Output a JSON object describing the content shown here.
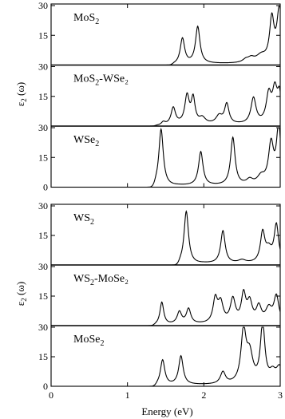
{
  "chart_data": [
    {
      "type": "line",
      "title": "",
      "xlabel": "Energy (eV)",
      "ylabel": "ε₂ (ω)",
      "xlim": [
        0,
        3
      ],
      "x_ticks": [
        "0",
        "1",
        "2",
        "3"
      ],
      "panels": [
        {
          "label_main": "MoS",
          "label_sub": "2",
          "label_rest": "",
          "ylim": [
            0,
            30
          ],
          "y_ticks": [
            "15",
            "30"
          ],
          "peaks": [
            [
              1.72,
              13.0,
              0.035
            ],
            [
              1.92,
              18.5,
              0.035
            ],
            [
              2.55,
              1.5,
              0.05
            ],
            [
              2.62,
              2.0,
              0.05
            ],
            [
              2.75,
              3.5,
              0.08
            ],
            [
              2.89,
              21.0,
              0.035
            ],
            [
              2.99,
              27.0,
              0.04
            ]
          ],
          "onset": 1.62
        },
        {
          "label_main": "MoS",
          "label_sub": "2",
          "label_rest": "-WSe₂",
          "ylim": [
            0,
            30
          ],
          "y_ticks": [
            "15",
            "30"
          ],
          "peaks": [
            [
              1.47,
              1.5,
              0.03
            ],
            [
              1.6,
              8.5,
              0.035
            ],
            [
              1.78,
              14.0,
              0.035
            ],
            [
              1.86,
              12.5,
              0.03
            ],
            [
              1.98,
              3.0,
              0.05
            ],
            [
              2.2,
              4.0,
              0.05
            ],
            [
              2.3,
              10.0,
              0.035
            ],
            [
              2.65,
              13.0,
              0.04
            ],
            [
              2.85,
              14.0,
              0.04
            ],
            [
              2.93,
              16.0,
              0.04
            ],
            [
              2.99,
              13.0,
              0.03
            ]
          ],
          "onset": 1.4
        },
        {
          "label_main": "WSe",
          "label_sub": "2",
          "label_rest": "",
          "ylim": [
            0,
            30
          ],
          "y_ticks": [
            "0",
            "15",
            "30"
          ],
          "peaks": [
            [
              1.44,
              29.0,
              0.035
            ],
            [
              1.96,
              17.0,
              0.035
            ],
            [
              2.38,
              24.0,
              0.035
            ],
            [
              2.6,
              2.5,
              0.05
            ],
            [
              2.75,
              4.0,
              0.06
            ],
            [
              2.88,
              20.0,
              0.04
            ],
            [
              2.98,
              29.0,
              0.035
            ]
          ],
          "onset": 1.38
        }
      ]
    },
    {
      "type": "line",
      "title": "",
      "xlabel": "Energy (eV)",
      "ylabel": "ε₂ (ω)",
      "xlim": [
        0,
        3
      ],
      "x_ticks": [
        "0",
        "1",
        "2",
        "3"
      ],
      "panels": [
        {
          "label_main": "WS",
          "label_sub": "2",
          "label_rest": "",
          "ylim": [
            0,
            30
          ],
          "y_ticks": [
            "15",
            "30"
          ],
          "peaks": [
            [
              1.77,
              27.0,
              0.035
            ],
            [
              2.25,
              16.5,
              0.035
            ],
            [
              2.5,
              1.5,
              0.06
            ],
            [
              2.77,
              15.0,
              0.035
            ],
            [
              2.85,
              6.0,
              0.05
            ],
            [
              2.95,
              19.0,
              0.035
            ]
          ],
          "onset": 1.7
        },
        {
          "label_main": "WS",
          "label_sub": "2",
          "label_rest": "-MoSe₂",
          "ylim": [
            0,
            30
          ],
          "y_ticks": [
            "15",
            "30"
          ],
          "peaks": [
            [
              1.45,
              11.5,
              0.03
            ],
            [
              1.68,
              6.0,
              0.035
            ],
            [
              1.8,
              7.5,
              0.035
            ],
            [
              2.15,
              12.0,
              0.035
            ],
            [
              2.22,
              10.0,
              0.04
            ],
            [
              2.38,
              12.0,
              0.04
            ],
            [
              2.52,
              14.0,
              0.035
            ],
            [
              2.6,
              10.0,
              0.04
            ],
            [
              2.72,
              8.0,
              0.04
            ],
            [
              2.85,
              7.0,
              0.05
            ],
            [
              2.95,
              13.5,
              0.04
            ]
          ],
          "onset": 1.38
        },
        {
          "label_main": "MoSe",
          "label_sub": "2",
          "label_rest": "",
          "ylim": [
            0,
            30
          ],
          "y_ticks": [
            "0",
            "15",
            "30"
          ],
          "peaks": [
            [
              1.46,
              13.0,
              0.035
            ],
            [
              1.7,
              14.5,
              0.035
            ],
            [
              2.25,
              6.0,
              0.04
            ],
            [
              2.52,
              26.0,
              0.04
            ],
            [
              2.6,
              14.0,
              0.05
            ],
            [
              2.77,
              30.0,
              0.035
            ],
            [
              2.9,
              5.0,
              0.05
            ],
            [
              2.99,
              8.0,
              0.05
            ]
          ],
          "onset": 1.4
        }
      ]
    }
  ]
}
